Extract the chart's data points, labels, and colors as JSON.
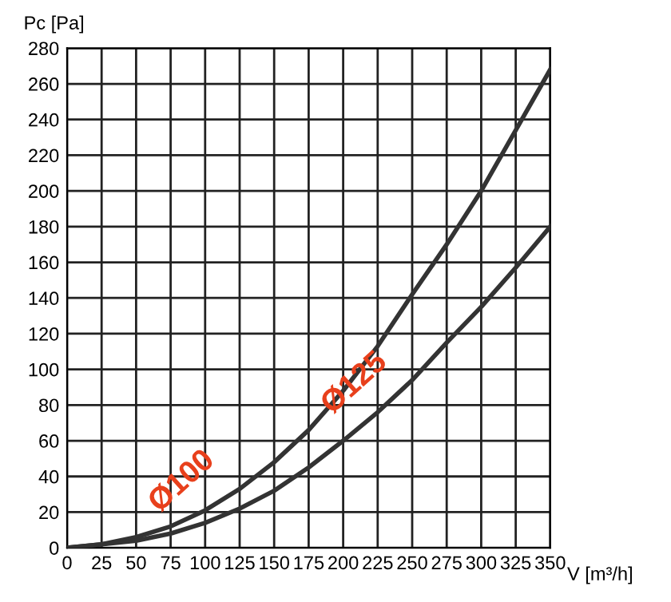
{
  "chart_data": {
    "type": "line",
    "xlabel": "V [m³/h]",
    "ylabel": "Pc [Pa]",
    "x": [
      0,
      25,
      50,
      75,
      100,
      125,
      150,
      175,
      200,
      225,
      250,
      275,
      300,
      325,
      350
    ],
    "series": [
      {
        "name": "Ø100",
        "color": "#333333",
        "values": [
          0,
          2,
          6,
          12,
          21,
          33,
          48,
          66,
          88,
          113,
          142,
          170,
          200,
          234,
          268
        ]
      },
      {
        "name": "Ø125",
        "color": "#333333",
        "values": [
          0,
          2,
          4,
          8,
          14,
          22,
          32,
          45,
          60,
          76,
          94,
          115,
          135,
          157,
          180
        ]
      }
    ],
    "xlim": [
      0,
      350
    ],
    "ylim": [
      0,
      280
    ],
    "xticks": [
      0,
      25,
      50,
      75,
      100,
      125,
      150,
      175,
      200,
      225,
      250,
      275,
      300,
      325,
      350
    ],
    "yticks": [
      0,
      20,
      40,
      60,
      80,
      100,
      120,
      140,
      160,
      180,
      200,
      220,
      240,
      260,
      280
    ],
    "grid": true,
    "legend": false,
    "marker": "none",
    "line_style": "solid"
  }
}
